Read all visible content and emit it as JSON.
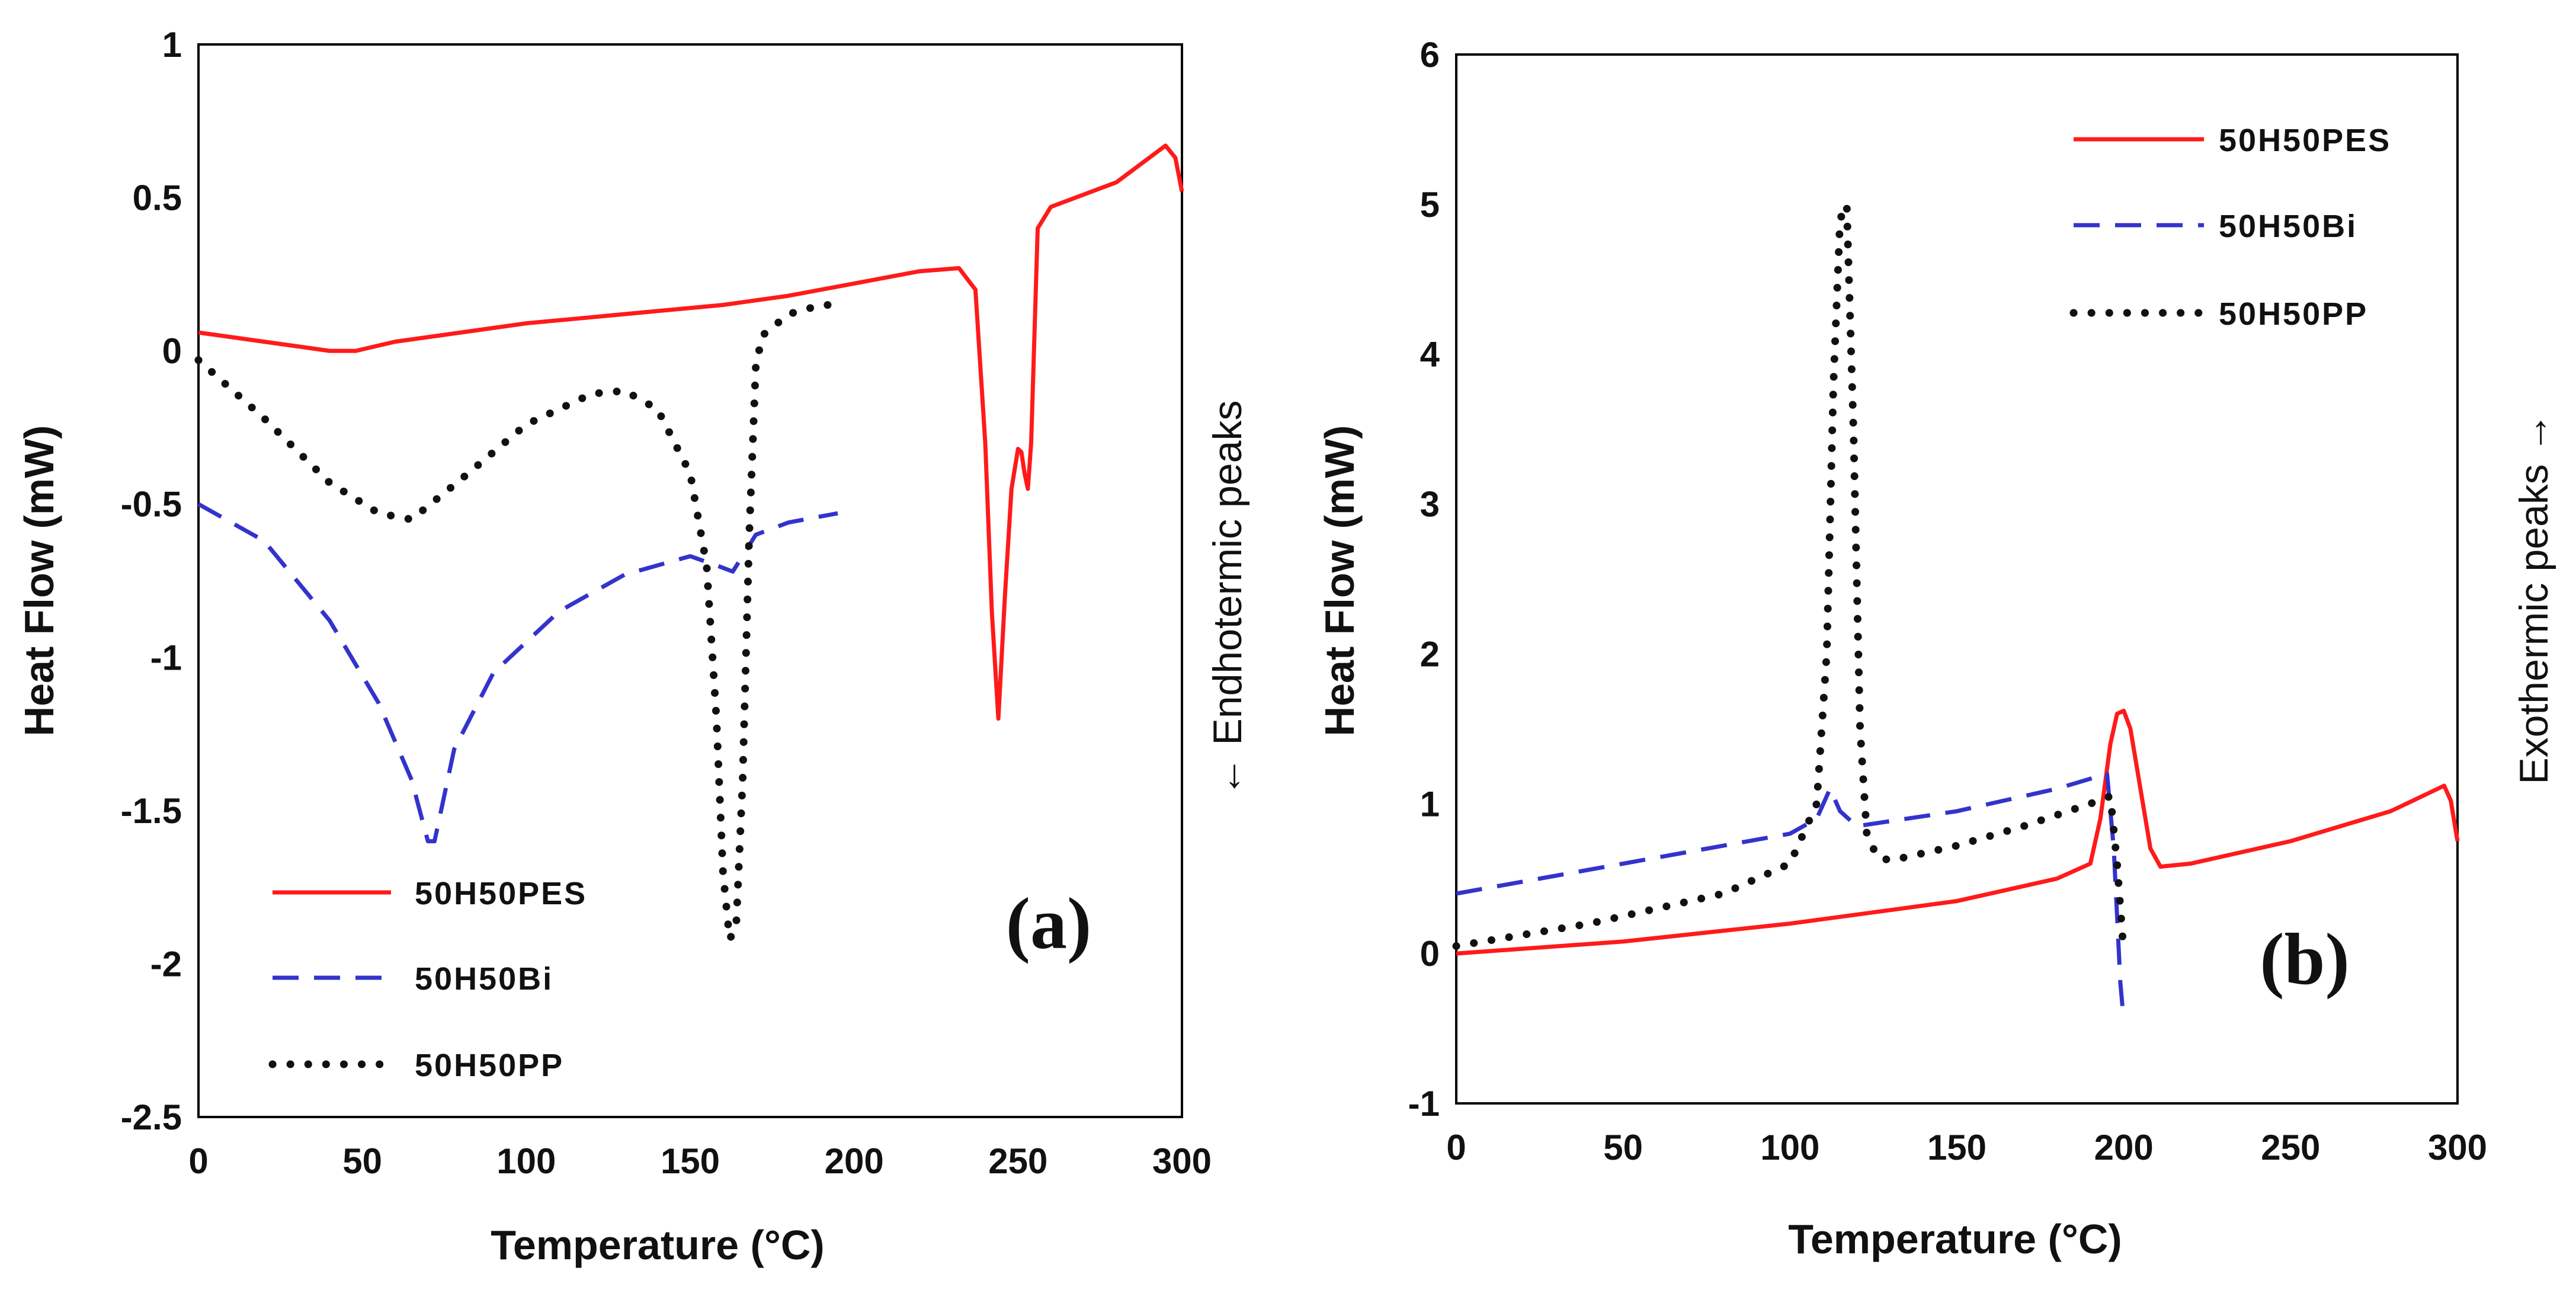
{
  "chart_data": [
    {
      "type": "line",
      "panel_label": "(a)",
      "xlabel": "Temperature (°C)",
      "ylabel": "Heat Flow (mW)",
      "side_note": "← Endhotermic peaks",
      "xlim": [
        0,
        300
      ],
      "ylim": [
        -2.5,
        1
      ],
      "xticks": [
        0,
        50,
        100,
        150,
        200,
        250,
        300
      ],
      "xtick_labels": [
        "0",
        "50",
        "100",
        "150",
        "200",
        "250",
        "300"
      ],
      "yticks": [
        1,
        0.5,
        0,
        -0.5,
        -1,
        -1.5,
        -2,
        -2.5
      ],
      "ytick_labels": [
        "1",
        "0.5",
        "0",
        "-0.5",
        "-1",
        "-1.5",
        "-2",
        "-2.5"
      ],
      "legend_position": "bottom-left",
      "series": [
        {
          "name": "50H50PES",
          "color": "#ff1a1a",
          "style": "solid",
          "x": [
            0,
            20,
            40,
            48,
            60,
            80,
            100,
            120,
            140,
            160,
            180,
            200,
            220,
            232,
            237,
            240,
            242,
            244,
            246,
            248,
            250,
            251,
            252,
            253,
            254,
            256,
            260,
            280,
            295,
            298,
            300
          ],
          "y": [
            0.06,
            0.03,
            0.0,
            0.0,
            0.03,
            0.06,
            0.09,
            0.11,
            0.13,
            0.15,
            0.18,
            0.22,
            0.26,
            0.27,
            0.2,
            -0.3,
            -0.85,
            -1.2,
            -0.8,
            -0.45,
            -0.32,
            -0.33,
            -0.4,
            -0.45,
            -0.3,
            0.4,
            0.47,
            0.55,
            0.67,
            0.63,
            0.52
          ]
        },
        {
          "name": "50H50Bi",
          "color": "#3333cc",
          "style": "dashed",
          "x": [
            0,
            20,
            40,
            55,
            65,
            70,
            72,
            74,
            78,
            90,
            110,
            130,
            150,
            158,
            163,
            170,
            180,
            195
          ],
          "y": [
            -0.5,
            -0.62,
            -0.88,
            -1.15,
            -1.4,
            -1.6,
            -1.6,
            -1.5,
            -1.3,
            -1.05,
            -0.85,
            -0.73,
            -0.67,
            -0.7,
            -0.72,
            -0.6,
            -0.56,
            -0.53
          ]
        },
        {
          "name": "50H50PP",
          "color": "#111111",
          "style": "dotted",
          "x": [
            0,
            20,
            40,
            55,
            65,
            80,
            100,
            120,
            130,
            140,
            150,
            155,
            158,
            160,
            162,
            164,
            166,
            168,
            170,
            172,
            180,
            190,
            195
          ],
          "y": [
            -0.03,
            -0.22,
            -0.43,
            -0.53,
            -0.55,
            -0.42,
            -0.24,
            -0.14,
            -0.13,
            -0.19,
            -0.4,
            -0.7,
            -1.2,
            -1.7,
            -1.92,
            -1.88,
            -1.4,
            -0.6,
            -0.05,
            0.05,
            0.12,
            0.15,
            0.15
          ]
        }
      ]
    },
    {
      "type": "line",
      "panel_label": "(b)",
      "xlabel": "Temperature (°C)",
      "ylabel": "Heat Flow (mW)",
      "side_note": "Exothermic peaks →",
      "xlim": [
        0,
        300
      ],
      "ylim": [
        -1,
        6
      ],
      "xticks": [
        0,
        50,
        100,
        150,
        200,
        250,
        300
      ],
      "xtick_labels": [
        "0",
        "50",
        "100",
        "150",
        "200",
        "250",
        "300"
      ],
      "yticks": [
        6,
        5,
        4,
        3,
        2,
        1,
        0,
        -1
      ],
      "ytick_labels": [
        "6",
        "5",
        "4",
        "3",
        "2",
        "1",
        "0",
        "-1"
      ],
      "legend_position": "top-right",
      "series": [
        {
          "name": "50H50PES",
          "color": "#ff1a1a",
          "style": "solid",
          "x": [
            0,
            50,
            100,
            150,
            180,
            190,
            193,
            196,
            198,
            200,
            202,
            205,
            208,
            211,
            220,
            250,
            280,
            296,
            298,
            300
          ],
          "y": [
            0.0,
            0.08,
            0.2,
            0.35,
            0.5,
            0.6,
            0.9,
            1.4,
            1.6,
            1.62,
            1.5,
            1.1,
            0.7,
            0.58,
            0.6,
            0.75,
            0.95,
            1.12,
            1.02,
            0.75
          ]
        },
        {
          "name": "50H50Bi",
          "color": "#3333cc",
          "style": "dashed",
          "x": [
            0,
            50,
            100,
            108,
            112,
            115,
            120,
            150,
            180,
            195,
            197,
            199,
            200
          ],
          "y": [
            0.4,
            0.6,
            0.8,
            0.9,
            1.1,
            0.95,
            0.85,
            0.95,
            1.1,
            1.2,
            0.7,
            -0.2,
            -0.45
          ]
        },
        {
          "name": "50H50PP",
          "color": "#111111",
          "style": "dotted",
          "x": [
            0,
            40,
            80,
            100,
            108,
            111,
            113,
            115,
            117,
            119,
            121,
            123,
            126,
            130,
            150,
            170,
            190,
            196,
            198,
            200
          ],
          "y": [
            0.05,
            0.2,
            0.4,
            0.6,
            1.0,
            2.0,
            3.8,
            4.9,
            5.0,
            3.5,
            1.5,
            0.8,
            0.65,
            0.62,
            0.72,
            0.85,
            1.0,
            1.05,
            0.6,
            0.0
          ]
        }
      ]
    }
  ]
}
